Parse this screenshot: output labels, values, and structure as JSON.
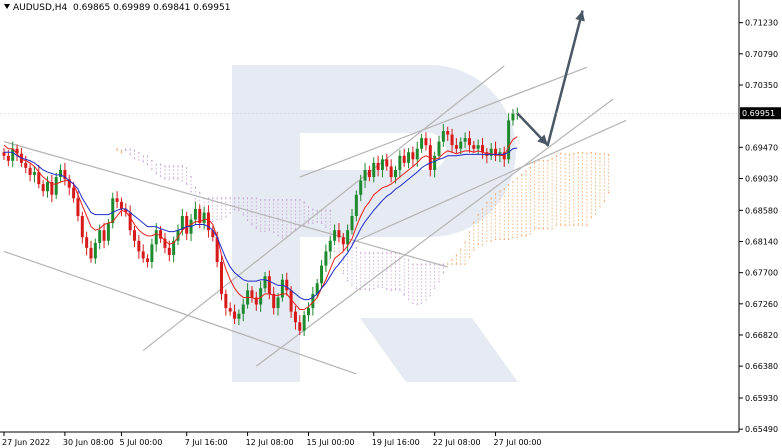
{
  "header": {
    "symbol_tf": "AUDUSD,H4",
    "ohlc": "0.69865 0.69989 0.69841 0.69951"
  },
  "colors": {
    "bull": "#1d8a2e",
    "bear": "#d61a1a",
    "tenkan": "#e8201a",
    "kijun": "#1f2cc9",
    "cloud_bull": "#f5a96b",
    "cloud_bear": "#caa1d6",
    "channel": "#b4b4b4",
    "watermark": "#dde3ee",
    "arrow": "#4a5866"
  },
  "chart_data": {
    "type": "candlestick",
    "symbol": "AUDUSD",
    "timeframe": "H4",
    "last_price": 0.69951,
    "ylim": [
      0.6545,
      0.7155
    ],
    "y_ticks": [
      0.7123,
      0.7079,
      0.7035,
      0.6947,
      0.6903,
      0.6858,
      0.6814,
      0.677,
      0.6726,
      0.6682,
      0.6638,
      0.6593,
      0.6549
    ],
    "x_ticks": [
      "27 Jun 2022",
      "30 Jun 08:00",
      "5 Jul 00:00",
      "7 Jul 16:00",
      "12 Jul 08:00",
      "15 Jul 00:00",
      "19 Jul 16:00",
      "22 Jul 08:00",
      "27 Jul 00:00"
    ],
    "x_tick_index": [
      0,
      14,
      27,
      42,
      56,
      70,
      85,
      99,
      113
    ],
    "price_label": "0.69951",
    "close": [
      0.6935,
      0.6928,
      0.6945,
      0.6938,
      0.6925,
      0.6918,
      0.6908,
      0.6912,
      0.6895,
      0.6885,
      0.6898,
      0.688,
      0.6905,
      0.6915,
      0.6902,
      0.689,
      0.6875,
      0.685,
      0.682,
      0.6805,
      0.679,
      0.6812,
      0.683,
      0.6815,
      0.684,
      0.6875,
      0.687,
      0.686,
      0.6855,
      0.683,
      0.6815,
      0.68,
      0.679,
      0.6785,
      0.681,
      0.683,
      0.6818,
      0.6805,
      0.6795,
      0.6815,
      0.683,
      0.685,
      0.6825,
      0.6845,
      0.686,
      0.684,
      0.6855,
      0.683,
      0.682,
      0.6785,
      0.674,
      0.672,
      0.6715,
      0.6705,
      0.6712,
      0.6725,
      0.6745,
      0.6735,
      0.6725,
      0.6748,
      0.6765,
      0.674,
      0.672,
      0.6735,
      0.676,
      0.6745,
      0.6715,
      0.67,
      0.6688,
      0.671,
      0.672,
      0.674,
      0.6755,
      0.678,
      0.68,
      0.6815,
      0.683,
      0.682,
      0.681,
      0.683,
      0.685,
      0.688,
      0.69,
      0.6915,
      0.6905,
      0.6925,
      0.6915,
      0.693,
      0.692,
      0.6905,
      0.6915,
      0.6935,
      0.6925,
      0.694,
      0.693,
      0.6945,
      0.696,
      0.695,
      0.6915,
      0.6935,
      0.6955,
      0.697,
      0.6965,
      0.695,
      0.6945,
      0.6955,
      0.696,
      0.695,
      0.6945,
      0.695,
      0.694,
      0.6935,
      0.6945,
      0.6935,
      0.694,
      0.693,
      0.6985,
      0.6995,
      0.69951
    ],
    "ichimoku": {
      "tenkan": [
        0.695,
        0.6945,
        0.6945,
        0.6938,
        0.693,
        0.6928,
        0.6925,
        0.692,
        0.6912,
        0.6905,
        0.69,
        0.6895,
        0.6895,
        0.6898,
        0.69,
        0.69,
        0.6895,
        0.688,
        0.6865,
        0.685,
        0.6835,
        0.683,
        0.6832,
        0.6838,
        0.684,
        0.6842,
        0.685,
        0.6858,
        0.6856,
        0.6848,
        0.6838,
        0.683,
        0.6825,
        0.6822,
        0.6822,
        0.6825,
        0.6822,
        0.6815,
        0.681,
        0.6812,
        0.682,
        0.683,
        0.6835,
        0.6838,
        0.6842,
        0.6842,
        0.6845,
        0.6845,
        0.6838,
        0.682,
        0.6795,
        0.6775,
        0.676,
        0.6748,
        0.674,
        0.6735,
        0.6735,
        0.6735,
        0.6732,
        0.6735,
        0.674,
        0.674,
        0.6738,
        0.6738,
        0.674,
        0.674,
        0.6732,
        0.6725,
        0.6718,
        0.6718,
        0.6722,
        0.6728,
        0.6735,
        0.6748,
        0.676,
        0.6775,
        0.679,
        0.6795,
        0.68,
        0.6808,
        0.6818,
        0.6835,
        0.685,
        0.6862,
        0.687,
        0.688,
        0.6885,
        0.689,
        0.6892,
        0.6895,
        0.69,
        0.6905,
        0.691,
        0.6915,
        0.692,
        0.6925,
        0.6932,
        0.6935,
        0.6932,
        0.693,
        0.6932,
        0.6938,
        0.6942,
        0.694,
        0.6938,
        0.694,
        0.6942,
        0.6942,
        0.694,
        0.6942,
        0.694,
        0.6938,
        0.6938,
        0.6936,
        0.6936,
        0.6935,
        0.6948,
        0.6958,
        0.6962
      ],
      "kijun": [
        0.694,
        0.694,
        0.694,
        0.6935,
        0.6932,
        0.693,
        0.6928,
        0.6925,
        0.692,
        0.6915,
        0.6912,
        0.691,
        0.6908,
        0.6908,
        0.6905,
        0.69,
        0.6895,
        0.6888,
        0.6875,
        0.6865,
        0.6855,
        0.6852,
        0.6852,
        0.6852,
        0.6852,
        0.6855,
        0.6858,
        0.686,
        0.686,
        0.6855,
        0.685,
        0.6845,
        0.684,
        0.6835,
        0.6835,
        0.6835,
        0.6832,
        0.683,
        0.6828,
        0.6828,
        0.683,
        0.6832,
        0.6835,
        0.6835,
        0.6838,
        0.6838,
        0.6838,
        0.6835,
        0.683,
        0.682,
        0.6805,
        0.679,
        0.6778,
        0.677,
        0.6765,
        0.676,
        0.6758,
        0.6758,
        0.6758,
        0.676,
        0.676,
        0.6758,
        0.6755,
        0.6752,
        0.6752,
        0.675,
        0.6745,
        0.674,
        0.6735,
        0.6732,
        0.6732,
        0.6735,
        0.674,
        0.6748,
        0.6755,
        0.6765,
        0.6775,
        0.6782,
        0.679,
        0.6798,
        0.6808,
        0.682,
        0.6832,
        0.6842,
        0.685,
        0.6858,
        0.6865,
        0.6872,
        0.6878,
        0.6882,
        0.6888,
        0.6892,
        0.6897,
        0.6902,
        0.6907,
        0.6912,
        0.6918,
        0.6922,
        0.6925,
        0.6927,
        0.693,
        0.6932,
        0.6935,
        0.6935,
        0.6935,
        0.6936,
        0.6937,
        0.6937,
        0.6937,
        0.6937,
        0.6937,
        0.6937,
        0.6937,
        0.6937,
        0.6937,
        0.6937,
        0.694,
        0.6945,
        0.6946
      ]
    }
  }
}
